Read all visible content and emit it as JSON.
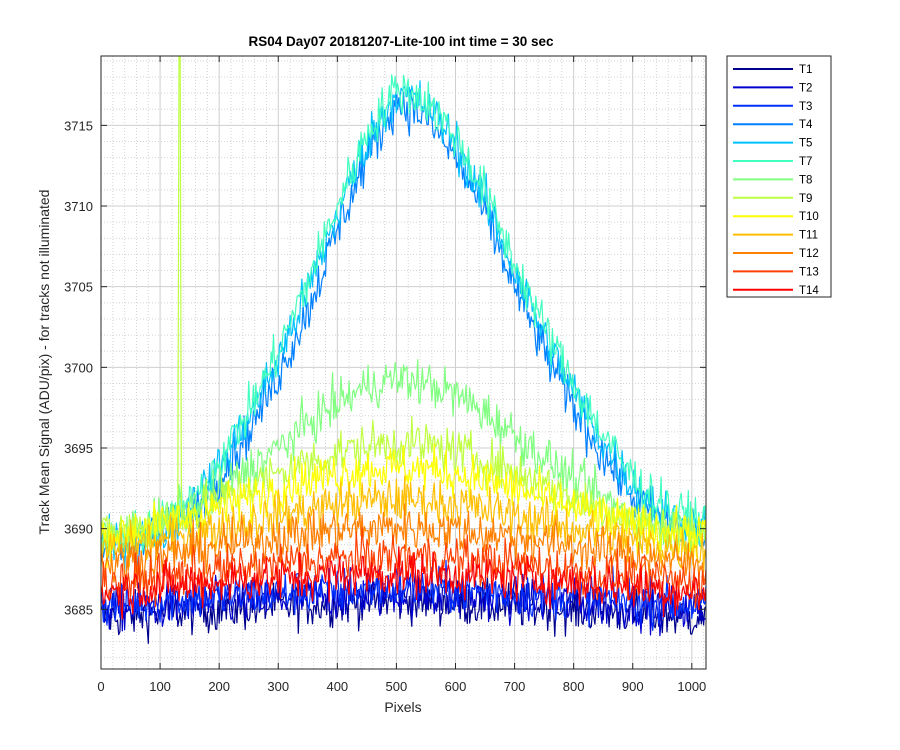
{
  "chart_data": {
    "type": "line",
    "title": "RS04 Day07 20181207-Lite-100 int time = 30 sec",
    "xlabel": "Pixels",
    "ylabel": "Track Mean Signal (ADU/pix) - for tracks not illuminated",
    "xlim": [
      0,
      1024
    ],
    "ylim": [
      3681.3,
      3719.3
    ],
    "x_ticks": [
      0,
      100,
      200,
      300,
      400,
      500,
      600,
      700,
      800,
      900,
      1000
    ],
    "y_ticks": [
      3685,
      3690,
      3695,
      3700,
      3705,
      3710,
      3715
    ],
    "grid": true,
    "minor_grid": true,
    "legend_position": "outside-top-right",
    "x": [
      0,
      50,
      100,
      150,
      200,
      250,
      300,
      350,
      400,
      450,
      500,
      550,
      600,
      650,
      700,
      750,
      800,
      850,
      900,
      950,
      1024
    ],
    "series": [
      {
        "name": "T1",
        "color": "#00008f",
        "values": [
          3684.5,
          3684.6,
          3684.8,
          3684.9,
          3685.0,
          3685.1,
          3685.2,
          3685.3,
          3685.4,
          3685.5,
          3685.6,
          3685.5,
          3685.4,
          3685.3,
          3685.2,
          3685.1,
          3685.0,
          3684.9,
          3684.8,
          3684.6,
          3684.5
        ]
      },
      {
        "name": "T2",
        "color": "#0000cf",
        "values": [
          3685.0,
          3685.1,
          3685.2,
          3685.3,
          3685.4,
          3685.5,
          3685.6,
          3685.7,
          3685.8,
          3685.9,
          3686.0,
          3685.9,
          3685.8,
          3685.7,
          3685.6,
          3685.5,
          3685.4,
          3685.3,
          3685.2,
          3685.1,
          3685.0
        ]
      },
      {
        "name": "T3",
        "color": "#0030ff",
        "values": [
          3685.3,
          3685.4,
          3685.6,
          3685.7,
          3685.8,
          3685.9,
          3686.0,
          3686.1,
          3686.2,
          3686.3,
          3686.4,
          3686.3,
          3686.2,
          3686.1,
          3686.0,
          3685.9,
          3685.8,
          3685.7,
          3685.6,
          3685.4,
          3685.3
        ]
      },
      {
        "name": "T4",
        "color": "#0080ff",
        "values": [
          3688.5,
          3689.0,
          3689.6,
          3690.8,
          3693.2,
          3696.0,
          3699.5,
          3703.5,
          3708.5,
          3713.0,
          3716.5,
          3715.5,
          3713.0,
          3709.5,
          3705.0,
          3701.0,
          3697.5,
          3694.5,
          3692.0,
          3690.5,
          3689.5
        ]
      },
      {
        "name": "T5",
        "color": "#00c0ff",
        "values": [
          3688.8,
          3689.3,
          3689.9,
          3691.2,
          3693.8,
          3696.8,
          3700.5,
          3704.8,
          3709.5,
          3714.0,
          3717.0,
          3716.3,
          3714.0,
          3710.3,
          3706.0,
          3702.0,
          3698.5,
          3695.3,
          3692.7,
          3691.0,
          3690.0
        ]
      },
      {
        "name": "T7",
        "color": "#40ffbf",
        "values": [
          3689.0,
          3689.5,
          3690.2,
          3691.5,
          3694.2,
          3697.3,
          3701.0,
          3705.3,
          3710.0,
          3714.5,
          3717.3,
          3716.6,
          3714.3,
          3710.8,
          3706.5,
          3702.5,
          3699.0,
          3695.8,
          3693.2,
          3691.4,
          3690.3
        ]
      },
      {
        "name": "T8",
        "color": "#80ff80",
        "values": [
          3689.3,
          3689.8,
          3690.5,
          3691.3,
          3692.3,
          3693.6,
          3695.0,
          3696.5,
          3697.8,
          3698.8,
          3699.3,
          3699.0,
          3698.3,
          3697.2,
          3695.8,
          3694.4,
          3693.0,
          3691.8,
          3690.8,
          3690.0,
          3689.5
        ]
      },
      {
        "name": "T9",
        "color": "#bfff40",
        "values": [
          3689.6,
          3690.0,
          3690.4,
          3691.0,
          3691.8,
          3692.6,
          3693.4,
          3694.1,
          3694.7,
          3695.1,
          3695.3,
          3695.2,
          3694.8,
          3694.2,
          3693.5,
          3692.7,
          3691.9,
          3691.2,
          3690.6,
          3690.1,
          3689.8
        ]
      },
      {
        "name": "T10",
        "color": "#ffff00",
        "values": [
          3689.4,
          3689.8,
          3690.2,
          3690.7,
          3691.3,
          3691.9,
          3692.5,
          3693.0,
          3693.4,
          3693.7,
          3693.8,
          3693.7,
          3693.4,
          3693.0,
          3692.5,
          3691.9,
          3691.3,
          3690.7,
          3690.2,
          3689.8,
          3689.5
        ]
      },
      {
        "name": "T11",
        "color": "#ffbf00",
        "values": [
          3688.6,
          3688.9,
          3689.2,
          3689.6,
          3690.0,
          3690.4,
          3690.8,
          3691.2,
          3691.5,
          3691.7,
          3691.8,
          3691.7,
          3691.5,
          3691.2,
          3690.8,
          3690.4,
          3690.0,
          3689.6,
          3689.2,
          3688.9,
          3688.7
        ]
      },
      {
        "name": "T12",
        "color": "#ff8000",
        "values": [
          3687.8,
          3688.0,
          3688.3,
          3688.6,
          3688.9,
          3689.2,
          3689.5,
          3689.7,
          3689.9,
          3690.0,
          3690.1,
          3690.0,
          3689.9,
          3689.7,
          3689.5,
          3689.2,
          3688.9,
          3688.6,
          3688.3,
          3688.0,
          3687.8
        ]
      },
      {
        "name": "T13",
        "color": "#ff4000",
        "values": [
          3686.6,
          3686.8,
          3687.0,
          3687.2,
          3687.4,
          3687.6,
          3687.8,
          3688.0,
          3688.1,
          3688.2,
          3688.3,
          3688.2,
          3688.1,
          3688.0,
          3687.8,
          3687.6,
          3687.4,
          3687.2,
          3687.0,
          3686.8,
          3686.6
        ]
      },
      {
        "name": "T14",
        "color": "#ff0000",
        "values": [
          3686.0,
          3686.2,
          3686.4,
          3686.5,
          3686.7,
          3686.8,
          3686.9,
          3687.0,
          3687.1,
          3687.2,
          3687.2,
          3687.2,
          3687.1,
          3687.0,
          3686.9,
          3686.8,
          3686.7,
          3686.5,
          3686.4,
          3686.2,
          3686.0
        ]
      }
    ],
    "annotations": [
      {
        "series": "T9",
        "x": 133,
        "y": 3719.3,
        "type": "spike"
      }
    ]
  }
}
